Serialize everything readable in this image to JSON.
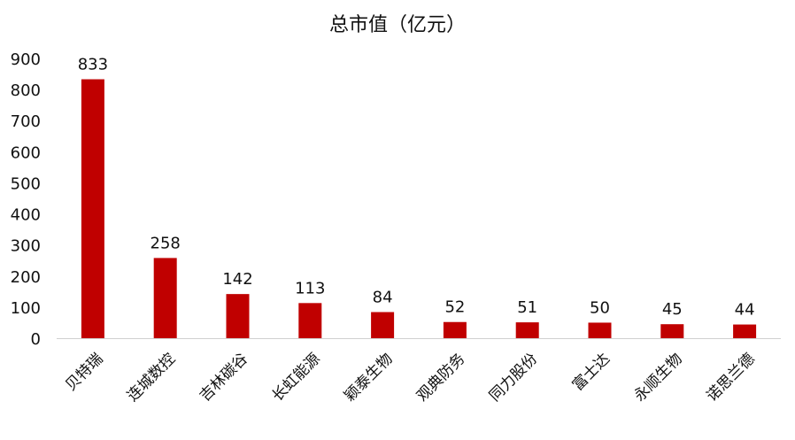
{
  "chart_data": {
    "type": "bar",
    "title": "总市值（亿元）",
    "xlabel": "",
    "ylabel": "",
    "ylim": [
      0,
      900
    ],
    "yticks": [
      0,
      100,
      200,
      300,
      400,
      500,
      600,
      700,
      800,
      900
    ],
    "grid": false,
    "legend": "none",
    "bar_color": "#c00000",
    "categories": [
      "贝特瑞",
      "连城数控",
      "吉林碳谷",
      "长虹能源",
      "颖泰生物",
      "观典防务",
      "同力股份",
      "富士达",
      "永顺生物",
      "诺思兰德"
    ],
    "values": [
      833,
      258,
      142,
      113,
      84,
      52,
      51,
      50,
      45,
      44
    ]
  }
}
